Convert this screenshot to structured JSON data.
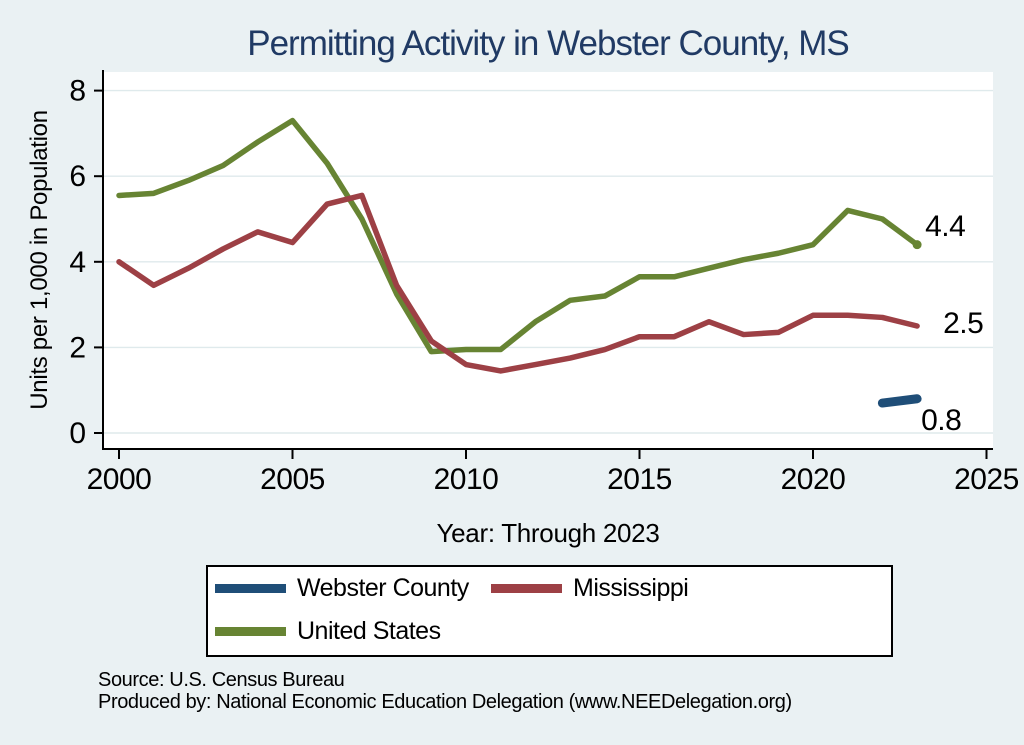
{
  "colors": {
    "background": "#eaf1f3",
    "plot_background": "#ffffff",
    "grid": "#dfeaec",
    "axis": "#000000",
    "title_text": "#203a64",
    "webster_navy": "#1f4e78",
    "mississippi_maroon": "#9d4045",
    "us_green": "#678433"
  },
  "source": {
    "line1": "Source: U.S. Census Bureau",
    "line2": "Produced by: National Economic Education Delegation (www.NEEDelegation.org)"
  },
  "chart_data": {
    "type": "line",
    "title": "Permitting Activity in Webster County, MS",
    "xlabel": "Year: Through 2023",
    "ylabel": "Units per 1,000 in Population",
    "xlim": [
      2000,
      2025
    ],
    "ylim": [
      0,
      8
    ],
    "x_ticks": [
      2000,
      2005,
      2010,
      2015,
      2020,
      2025
    ],
    "y_ticks": [
      0,
      2,
      4,
      6,
      8
    ],
    "grid": true,
    "legend_position": "bottom-box",
    "series": [
      {
        "name": "Webster County",
        "color": "#1f4e78",
        "line_width": 9,
        "x": [
          2022,
          2023
        ],
        "values": [
          0.7,
          0.8
        ],
        "end_label": "0.8"
      },
      {
        "name": "Mississippi",
        "color": "#9d4045",
        "line_width": 5.5,
        "x": [
          2000,
          2001,
          2002,
          2003,
          2004,
          2005,
          2006,
          2007,
          2008,
          2009,
          2010,
          2011,
          2012,
          2013,
          2014,
          2015,
          2016,
          2017,
          2018,
          2019,
          2020,
          2021,
          2022,
          2023
        ],
        "values": [
          4.0,
          3.45,
          3.85,
          4.3,
          4.7,
          4.45,
          5.35,
          5.55,
          3.45,
          2.15,
          1.6,
          1.45,
          1.6,
          1.75,
          1.95,
          2.25,
          2.25,
          2.6,
          2.3,
          2.35,
          2.75,
          2.75,
          2.7,
          2.5
        ],
        "end_label": "2.5"
      },
      {
        "name": "United States",
        "color": "#678433",
        "line_width": 5.5,
        "end_marker": true,
        "x": [
          2000,
          2001,
          2002,
          2003,
          2004,
          2005,
          2006,
          2007,
          2008,
          2009,
          2010,
          2011,
          2012,
          2013,
          2014,
          2015,
          2016,
          2017,
          2018,
          2019,
          2020,
          2021,
          2022,
          2023
        ],
        "values": [
          5.55,
          5.6,
          5.9,
          6.25,
          6.8,
          7.3,
          6.3,
          5.0,
          3.25,
          1.9,
          1.95,
          1.95,
          2.6,
          3.1,
          3.2,
          3.65,
          3.65,
          3.85,
          4.05,
          4.2,
          4.4,
          5.2,
          5.0,
          4.4
        ],
        "end_label": "4.4"
      }
    ]
  }
}
